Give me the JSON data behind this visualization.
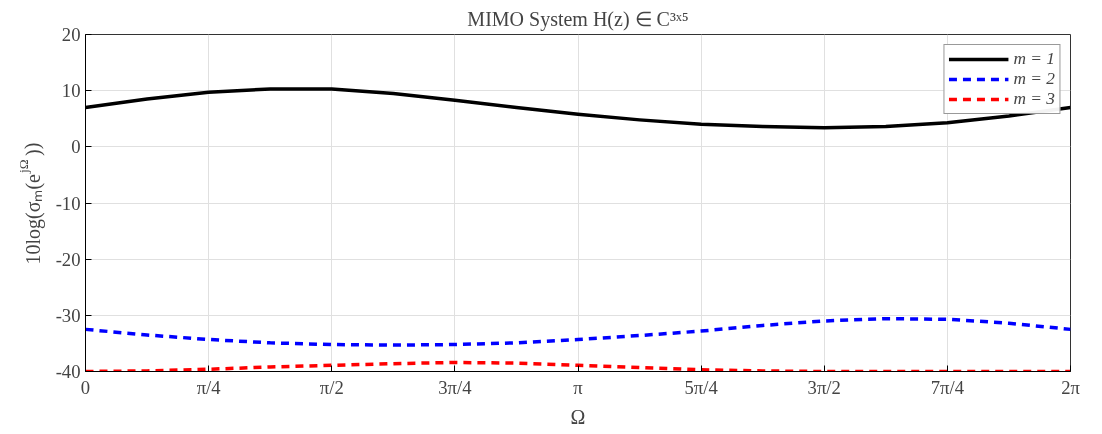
{
  "chart_data": {
    "type": "line",
    "title": "MIMO System H(z) ∈ C³ˣ⁵",
    "xlabel": "Ω",
    "ylabel": "10log(σₘ(e$^{jΩ}$))",
    "x": [
      0,
      0.3927,
      0.7854,
      1.1781,
      1.5708,
      1.9635,
      2.3562,
      2.7489,
      3.1416,
      3.5343,
      3.927,
      4.3197,
      4.7124,
      5.1051,
      5.4978,
      5.8905,
      6.2832
    ],
    "series": [
      {
        "name": "m = 1",
        "color": "#000000",
        "line_style": "solid",
        "values": [
          7.0,
          8.5,
          9.7,
          10.3,
          10.3,
          9.5,
          8.3,
          7.0,
          5.8,
          4.8,
          4.0,
          3.6,
          3.4,
          3.6,
          4.3,
          5.5,
          7.0
        ]
      },
      {
        "name": "m = 2",
        "color": "#0000ff",
        "line_style": "dashed",
        "values": [
          -32.5,
          -33.5,
          -34.3,
          -34.9,
          -35.2,
          -35.3,
          -35.2,
          -34.9,
          -34.3,
          -33.6,
          -32.8,
          -31.8,
          -31.0,
          -30.6,
          -30.7,
          -31.4,
          -32.5
        ]
      },
      {
        "name": "m = 3",
        "color": "#ff0000",
        "line_style": "dashed",
        "values": [
          -40.0,
          -39.9,
          -39.6,
          -39.2,
          -38.9,
          -38.6,
          -38.4,
          -38.5,
          -38.9,
          -39.3,
          -39.7,
          -39.9,
          -40.0,
          -40.0,
          -40.0,
          -40.0,
          -40.0
        ]
      }
    ],
    "xlim": [
      0,
      6.2832
    ],
    "ylim": [
      -40,
      20
    ],
    "xticks": [
      0,
      {
        "value": 0.7854,
        "label": "π/4"
      },
      {
        "value": 1.5708,
        "label": "π/2"
      },
      {
        "value": 2.3562,
        "label": "3π/4"
      },
      {
        "value": 3.1416,
        "label": "π"
      },
      {
        "value": 3.927,
        "label": "5π/4"
      },
      {
        "value": 4.7124,
        "label": "3π/2"
      },
      {
        "value": 5.4978,
        "label": "7π/4"
      },
      {
        "value": 6.2832,
        "label": "2π"
      }
    ],
    "yticks": [
      -40,
      -30,
      -20,
      -10,
      0,
      10,
      20
    ],
    "grid": true,
    "legend": "top right"
  }
}
